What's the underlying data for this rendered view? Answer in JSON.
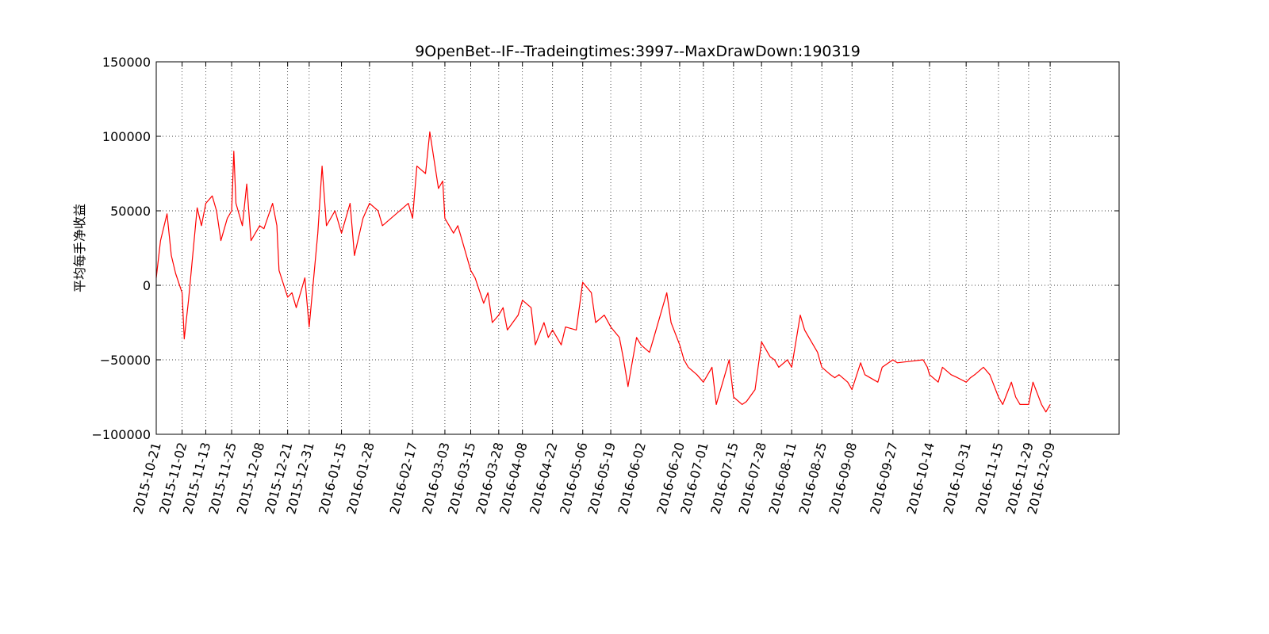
{
  "chart_data": {
    "type": "line",
    "title": "9OpenBet--IF--Tradeingtimes:3997--MaxDrawDown:190319",
    "xlabel": "",
    "ylabel": "平均每手净收益",
    "ylim": [
      -100000,
      150000
    ],
    "yticks": [
      150000,
      100000,
      50000,
      0,
      -50000,
      -100000
    ],
    "ytick_labels": [
      "150000",
      "100000",
      "50000",
      "0",
      "−50000",
      "−100000"
    ],
    "xlim": [
      "2015-10-21",
      "2017-01-10"
    ],
    "xticks": [
      "2015-10-21",
      "2015-11-02",
      "2015-11-13",
      "2015-11-25",
      "2015-12-08",
      "2015-12-21",
      "2015-12-31",
      "2016-01-15",
      "2016-01-28",
      "2016-02-17",
      "2016-03-03",
      "2016-03-15",
      "2016-03-28",
      "2016-04-08",
      "2016-04-22",
      "2016-05-06",
      "2016-05-19",
      "2016-06-02",
      "2016-06-20",
      "2016-07-01",
      "2016-07-15",
      "2016-07-28",
      "2016-08-11",
      "2016-08-25",
      "2016-09-08",
      "2016-09-27",
      "2016-10-14",
      "2016-10-31",
      "2016-11-15",
      "2016-11-29",
      "2016-12-09"
    ],
    "grid": true,
    "line_color": "#ff0000",
    "series": [
      {
        "x": [
          "2015-10-21",
          "2015-10-23",
          "2015-10-26",
          "2015-10-28",
          "2015-10-30",
          "2015-11-02",
          "2015-11-03",
          "2015-11-05",
          "2015-11-09",
          "2015-11-11",
          "2015-11-13",
          "2015-11-16",
          "2015-11-18",
          "2015-11-20",
          "2015-11-23",
          "2015-11-25",
          "2015-11-26",
          "2015-11-27",
          "2015-11-30",
          "2015-12-02",
          "2015-12-04",
          "2015-12-08",
          "2015-12-10",
          "2015-12-14",
          "2015-12-16",
          "2015-12-17",
          "2015-12-21",
          "2015-12-23",
          "2015-12-25",
          "2015-12-29",
          "2015-12-31",
          "2016-01-04",
          "2016-01-06",
          "2016-01-08",
          "2016-01-12",
          "2016-01-15",
          "2016-01-19",
          "2016-01-21",
          "2016-01-25",
          "2016-01-28",
          "2016-02-01",
          "2016-02-03",
          "2016-02-15",
          "2016-02-17",
          "2016-02-19",
          "2016-02-23",
          "2016-02-25",
          "2016-02-29",
          "2016-03-02",
          "2016-03-03",
          "2016-03-07",
          "2016-03-09",
          "2016-03-11",
          "2016-03-15",
          "2016-03-17",
          "2016-03-21",
          "2016-03-23",
          "2016-03-25",
          "2016-03-28",
          "2016-03-30",
          "2016-04-01",
          "2016-04-06",
          "2016-04-08",
          "2016-04-12",
          "2016-04-14",
          "2016-04-18",
          "2016-04-20",
          "2016-04-22",
          "2016-04-26",
          "2016-04-28",
          "2016-05-03",
          "2016-05-06",
          "2016-05-10",
          "2016-05-12",
          "2016-05-16",
          "2016-05-19",
          "2016-05-23",
          "2016-05-25",
          "2016-05-27",
          "2016-05-31",
          "2016-06-02",
          "2016-06-06",
          "2016-06-08",
          "2016-06-14",
          "2016-06-16",
          "2016-06-20",
          "2016-06-22",
          "2016-06-24",
          "2016-06-28",
          "2016-07-01",
          "2016-07-05",
          "2016-07-07",
          "2016-07-11",
          "2016-07-13",
          "2016-07-15",
          "2016-07-19",
          "2016-07-21",
          "2016-07-25",
          "2016-07-28",
          "2016-08-01",
          "2016-08-03",
          "2016-08-05",
          "2016-08-09",
          "2016-08-11",
          "2016-08-15",
          "2016-08-17",
          "2016-08-19",
          "2016-08-23",
          "2016-08-25",
          "2016-08-29",
          "2016-08-31",
          "2016-09-02",
          "2016-09-06",
          "2016-09-08",
          "2016-09-12",
          "2016-09-14",
          "2016-09-20",
          "2016-09-22",
          "2016-09-27",
          "2016-09-29",
          "2016-10-11",
          "2016-10-13",
          "2016-10-14",
          "2016-10-18",
          "2016-10-20",
          "2016-10-24",
          "2016-10-27",
          "2016-10-31",
          "2016-11-02",
          "2016-11-04",
          "2016-11-08",
          "2016-11-11",
          "2016-11-15",
          "2016-11-17",
          "2016-11-21",
          "2016-11-23",
          "2016-11-25",
          "2016-11-29",
          "2016-12-01",
          "2016-12-05",
          "2016-12-07",
          "2016-12-09"
        ],
        "y": [
          5000,
          30000,
          48000,
          20000,
          8000,
          -5000,
          -36000,
          -10000,
          52000,
          40000,
          55000,
          60000,
          50000,
          30000,
          45000,
          50000,
          90000,
          55000,
          40000,
          68000,
          30000,
          40000,
          38000,
          55000,
          40000,
          10000,
          -8000,
          -5000,
          -15000,
          5000,
          -28000,
          35000,
          80000,
          40000,
          50000,
          35000,
          55000,
          20000,
          45000,
          55000,
          50000,
          40000,
          55000,
          45000,
          80000,
          75000,
          103000,
          65000,
          70000,
          45000,
          35000,
          40000,
          30000,
          10000,
          5000,
          -12000,
          -5000,
          -25000,
          -20000,
          -15000,
          -30000,
          -20000,
          -10000,
          -15000,
          -40000,
          -25000,
          -35000,
          -30000,
          -40000,
          -28000,
          -30000,
          2000,
          -5000,
          -25000,
          -20000,
          -28000,
          -35000,
          -50000,
          -68000,
          -35000,
          -40000,
          -45000,
          -35000,
          -5000,
          -25000,
          -40000,
          -50000,
          -55000,
          -60000,
          -65000,
          -55000,
          -80000,
          -60000,
          -50000,
          -75000,
          -80000,
          -78000,
          -70000,
          -38000,
          -48000,
          -50000,
          -55000,
          -50000,
          -55000,
          -20000,
          -30000,
          -35000,
          -45000,
          -55000,
          -60000,
          -62000,
          -60000,
          -65000,
          -70000,
          -52000,
          -60000,
          -65000,
          -55000,
          -50000,
          -52000,
          -50000,
          -55000,
          -60000,
          -65000,
          -55000,
          -60000,
          -62000,
          -65000,
          -62000,
          -60000,
          -55000,
          -60000,
          -75000,
          -80000,
          -65000,
          -75000,
          -80000,
          -80000,
          -65000,
          -80000,
          -85000,
          -80000
        ]
      }
    ]
  }
}
